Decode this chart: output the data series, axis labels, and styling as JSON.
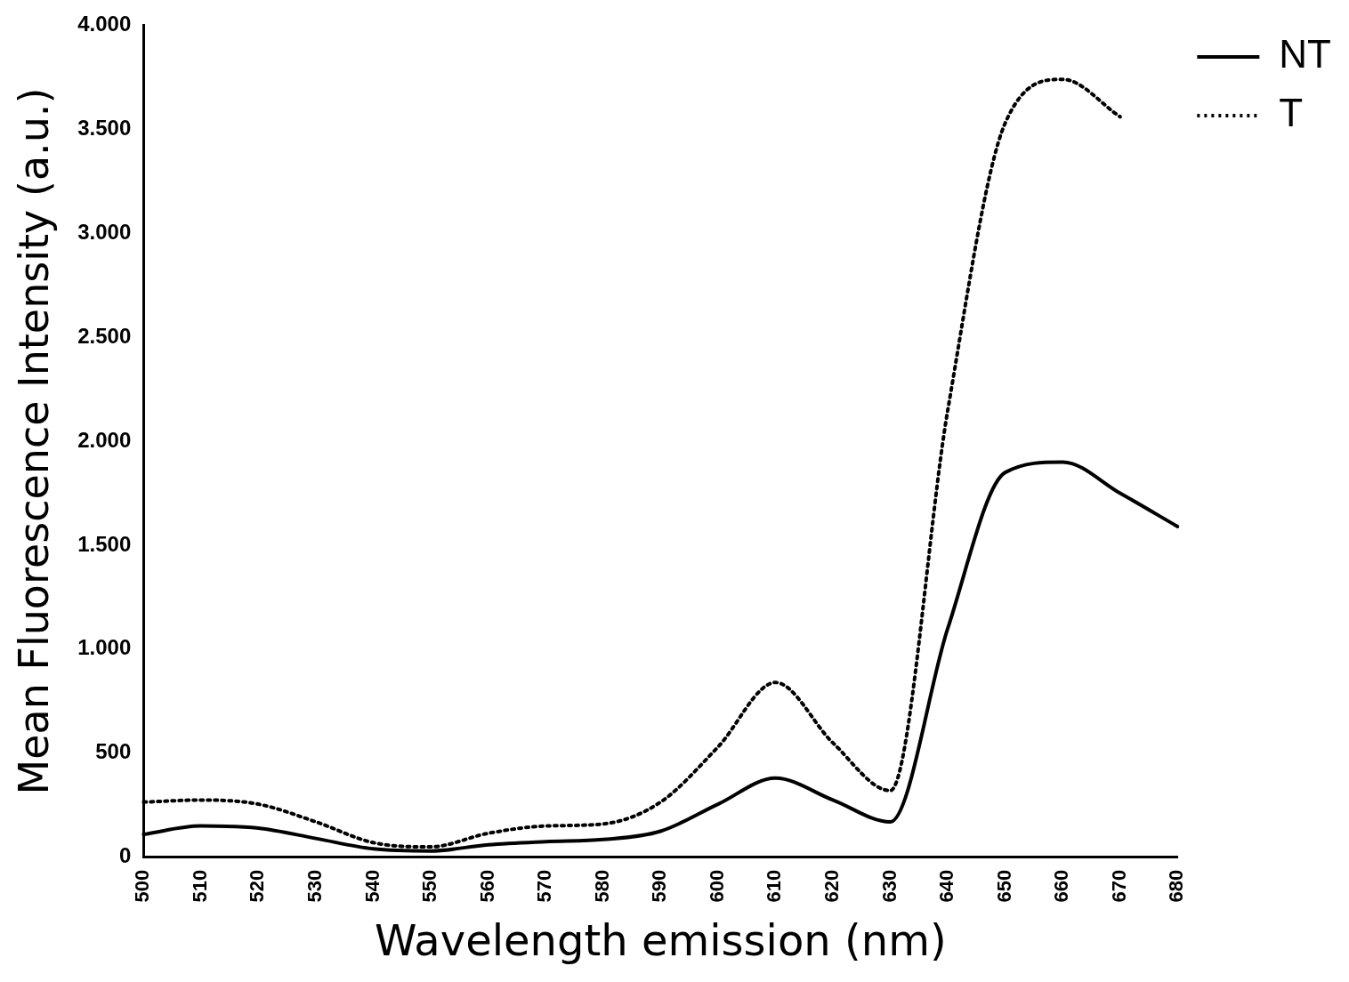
{
  "chart_data": {
    "type": "line",
    "xlabel": "Wavelength emission (nm)",
    "ylabel": "Mean Fluorescence Intensity (a.u.)",
    "categories": [
      "500",
      "510",
      "520",
      "530",
      "540",
      "550",
      "560",
      "570",
      "580",
      "590",
      "600",
      "610",
      "620",
      "630",
      "640",
      "650",
      "660",
      "670",
      "680"
    ],
    "series": [
      {
        "name": "NT",
        "color": "#000000",
        "line_style": "solid",
        "values": [
          110,
          150,
          140,
          90,
          40,
          30,
          60,
          75,
          85,
          125,
          255,
          380,
          275,
          170,
          1100,
          1850,
          1900,
          1750,
          1590
        ]
      },
      {
        "name": "T",
        "color": "#000000",
        "line_style": "dotted",
        "values": [
          265,
          275,
          255,
          170,
          70,
          50,
          115,
          150,
          160,
          265,
          530,
          840,
          550,
          320,
          2150,
          3530,
          3740,
          3560,
          null
        ]
      }
    ],
    "ylim": [
      0,
      4000
    ],
    "yticks": [
      0,
      {
        "value": 500,
        "label": "500"
      },
      {
        "value": 1000,
        "label": "1.000"
      },
      {
        "value": 1500,
        "label": "1.500"
      },
      {
        "value": 2000,
        "label": "2.000"
      },
      {
        "value": 2500,
        "label": "2.500"
      },
      {
        "value": 3000,
        "label": "3.000"
      },
      {
        "value": 3500,
        "label": "3.500"
      },
      {
        "value": 4000,
        "label": "4.000"
      }
    ],
    "grid": false,
    "legend": "top right",
    "marker": "none"
  }
}
